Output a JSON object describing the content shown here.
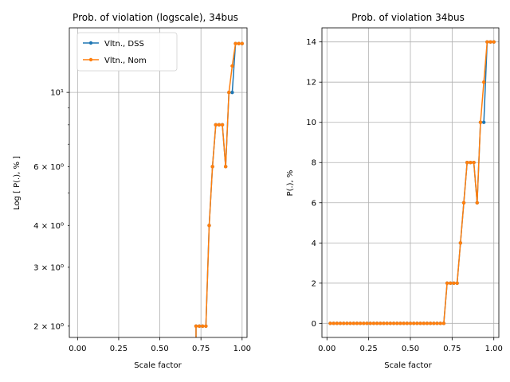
{
  "chart_data": [
    {
      "type": "line",
      "title": "Prob. of violation (logscale), 34bus",
      "xlabel": "Scale factor",
      "ylabel": "Log [ P(.), % ]",
      "yscale": "log",
      "xlim": [
        -0.05,
        1.03
      ],
      "ylim": [
        1.85,
        15.6
      ],
      "xticks": [
        0.0,
        0.25,
        0.5,
        0.75,
        1.0
      ],
      "xtick_labels": [
        "0.00",
        "0.25",
        "0.50",
        "0.75",
        "1.00"
      ],
      "yticks": [
        2,
        3,
        4,
        6,
        10
      ],
      "ytick_labels": [
        "2 × 10⁰",
        "3 × 10⁰",
        "4 × 10⁰",
        "6 × 10⁰",
        "10¹"
      ],
      "grid": true,
      "legend": {
        "position": "top-left",
        "entries": [
          "Vltn., DSS",
          "Vltn., Nom"
        ]
      },
      "series": [
        {
          "name": "Vltn., DSS",
          "color": "#1f77b4",
          "x": [
            0.72,
            0.74,
            0.76,
            0.78,
            0.8,
            0.82,
            0.84,
            0.86,
            0.88,
            0.9,
            0.92,
            0.94,
            0.96,
            0.98,
            1.0
          ],
          "y": [
            2,
            2,
            2,
            2,
            4,
            6,
            8,
            8,
            8,
            6,
            10,
            10,
            14,
            14,
            14
          ]
        },
        {
          "name": "Vltn., Nom",
          "color": "#ff7f0e",
          "x": [
            0.72,
            0.74,
            0.76,
            0.78,
            0.8,
            0.82,
            0.84,
            0.86,
            0.88,
            0.9,
            0.92,
            0.94,
            0.96,
            0.98,
            1.0
          ],
          "y": [
            2,
            2,
            2,
            2,
            4,
            6,
            8,
            8,
            8,
            6,
            10,
            12,
            14,
            14,
            14
          ]
        }
      ]
    },
    {
      "type": "line",
      "title": "Prob. of violation 34bus",
      "xlabel": "Scale factor",
      "ylabel": "P(.), %",
      "yscale": "linear",
      "xlim": [
        -0.03,
        1.03
      ],
      "ylim": [
        -0.7,
        14.7
      ],
      "xticks": [
        0.0,
        0.25,
        0.5,
        0.75,
        1.0
      ],
      "xtick_labels": [
        "0.00",
        "0.25",
        "0.50",
        "0.75",
        "1.00"
      ],
      "yticks": [
        0,
        2,
        4,
        6,
        8,
        10,
        12,
        14
      ],
      "ytick_labels": [
        "0",
        "2",
        "4",
        "6",
        "8",
        "10",
        "12",
        "14"
      ],
      "grid": true,
      "series": [
        {
          "name": "Vltn., DSS",
          "color": "#1f77b4",
          "x": [
            0.02,
            0.04,
            0.06,
            0.08,
            0.1,
            0.12,
            0.14,
            0.16,
            0.18,
            0.2,
            0.22,
            0.24,
            0.26,
            0.28,
            0.3,
            0.32,
            0.34,
            0.36,
            0.38,
            0.4,
            0.42,
            0.44,
            0.46,
            0.48,
            0.5,
            0.52,
            0.54,
            0.56,
            0.58,
            0.6,
            0.62,
            0.64,
            0.66,
            0.68,
            0.7,
            0.72,
            0.74,
            0.76,
            0.78,
            0.8,
            0.82,
            0.84,
            0.86,
            0.88,
            0.9,
            0.92,
            0.94,
            0.96,
            0.98,
            1.0
          ],
          "y": [
            0,
            0,
            0,
            0,
            0,
            0,
            0,
            0,
            0,
            0,
            0,
            0,
            0,
            0,
            0,
            0,
            0,
            0,
            0,
            0,
            0,
            0,
            0,
            0,
            0,
            0,
            0,
            0,
            0,
            0,
            0,
            0,
            0,
            0,
            0,
            2,
            2,
            2,
            2,
            4,
            6,
            8,
            8,
            8,
            6,
            10,
            10,
            14,
            14,
            14
          ]
        },
        {
          "name": "Vltn., Nom",
          "color": "#ff7f0e",
          "x": [
            0.02,
            0.04,
            0.06,
            0.08,
            0.1,
            0.12,
            0.14,
            0.16,
            0.18,
            0.2,
            0.22,
            0.24,
            0.26,
            0.28,
            0.3,
            0.32,
            0.34,
            0.36,
            0.38,
            0.4,
            0.42,
            0.44,
            0.46,
            0.48,
            0.5,
            0.52,
            0.54,
            0.56,
            0.58,
            0.6,
            0.62,
            0.64,
            0.66,
            0.68,
            0.7,
            0.72,
            0.74,
            0.76,
            0.78,
            0.8,
            0.82,
            0.84,
            0.86,
            0.88,
            0.9,
            0.92,
            0.94,
            0.96,
            0.98,
            1.0
          ],
          "y": [
            0,
            0,
            0,
            0,
            0,
            0,
            0,
            0,
            0,
            0,
            0,
            0,
            0,
            0,
            0,
            0,
            0,
            0,
            0,
            0,
            0,
            0,
            0,
            0,
            0,
            0,
            0,
            0,
            0,
            0,
            0,
            0,
            0,
            0,
            0,
            2,
            2,
            2,
            2,
            4,
            6,
            8,
            8,
            8,
            6,
            10,
            12,
            14,
            14,
            14
          ]
        }
      ]
    }
  ]
}
